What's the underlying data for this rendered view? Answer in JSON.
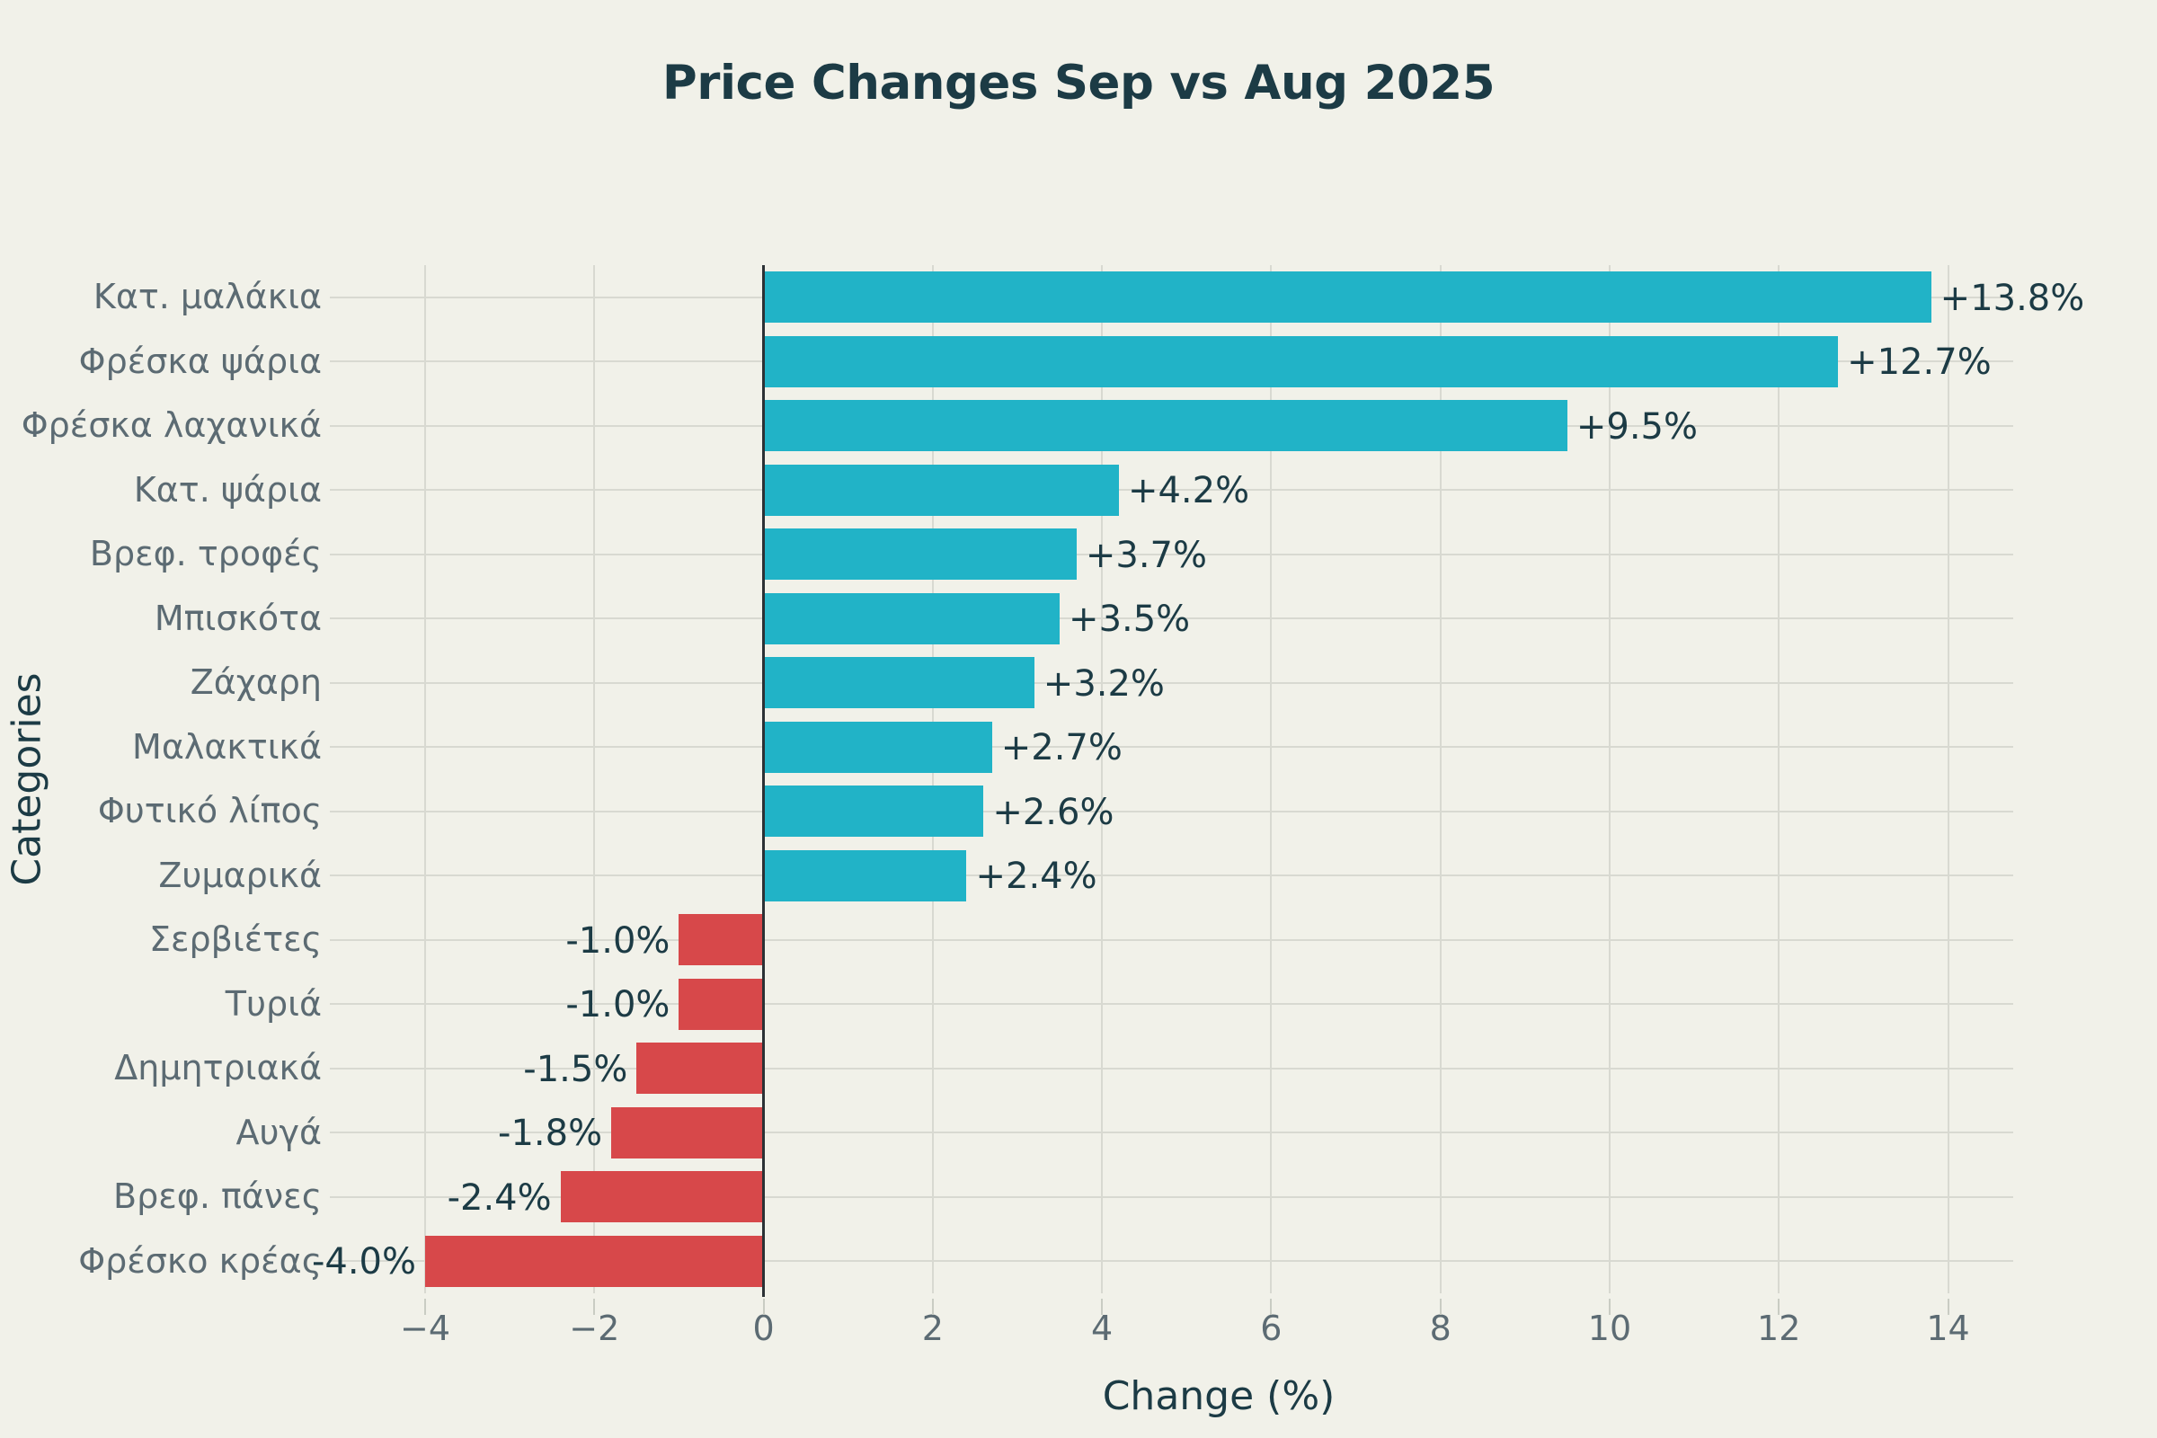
{
  "title": "Price Changes Sep vs Aug 2025",
  "chart_data": {
    "type": "bar",
    "orientation": "horizontal",
    "title": "Price Changes Sep vs Aug 2025",
    "xlabel": "Change (%)",
    "ylabel": "Categories",
    "categories": [
      "Κατ. μαλάκια",
      "Φρέσκα ψάρια",
      "Φρέσκα λαχανικά",
      "Κατ. ψάρια",
      "Βρεφ. τροφές",
      "Μπισκότα",
      "Ζάχαρη",
      "Μαλακτικά",
      "Φυτικό λίπος",
      "Ζυμαρικά",
      "Σερβιέτες",
      "Τυριά",
      "Δημητριακά",
      "Αυγά",
      "Βρεφ. πάνες",
      "Φρέσκο κρέας"
    ],
    "values": [
      13.8,
      12.7,
      9.5,
      4.2,
      3.7,
      3.5,
      3.2,
      2.7,
      2.6,
      2.4,
      -1.0,
      -1.0,
      -1.5,
      -1.8,
      -2.4,
      -4.0
    ],
    "value_labels": [
      "+13.8%",
      "+12.7%",
      "+9.5%",
      "+4.2%",
      "+3.7%",
      "+3.5%",
      "+3.2%",
      "+2.7%",
      "+2.6%",
      "+2.4%",
      "-1.0%",
      "-1.0%",
      "-1.5%",
      "-1.8%",
      "-2.4%",
      "-4.0%"
    ],
    "x_ticks": [
      -4,
      -2,
      0,
      2,
      4,
      6,
      8,
      10,
      12,
      14
    ],
    "x_tick_labels": [
      "−4",
      "−2",
      "0",
      "2",
      "4",
      "6",
      "8",
      "10",
      "12",
      "14"
    ],
    "xlim": [
      -4,
      14.77
    ],
    "grid": true,
    "legend": "none",
    "colors": {
      "positive": "#21b3c7",
      "negative": "#d7484a",
      "background": "#f1f1e9",
      "grid": "#d8d9d1",
      "zero_line": "#2b3135",
      "title_text": "#1c3b45",
      "value_text": "#1c3b45",
      "category_text": "#5c6b73",
      "tick_text": "#5c6b73"
    }
  }
}
